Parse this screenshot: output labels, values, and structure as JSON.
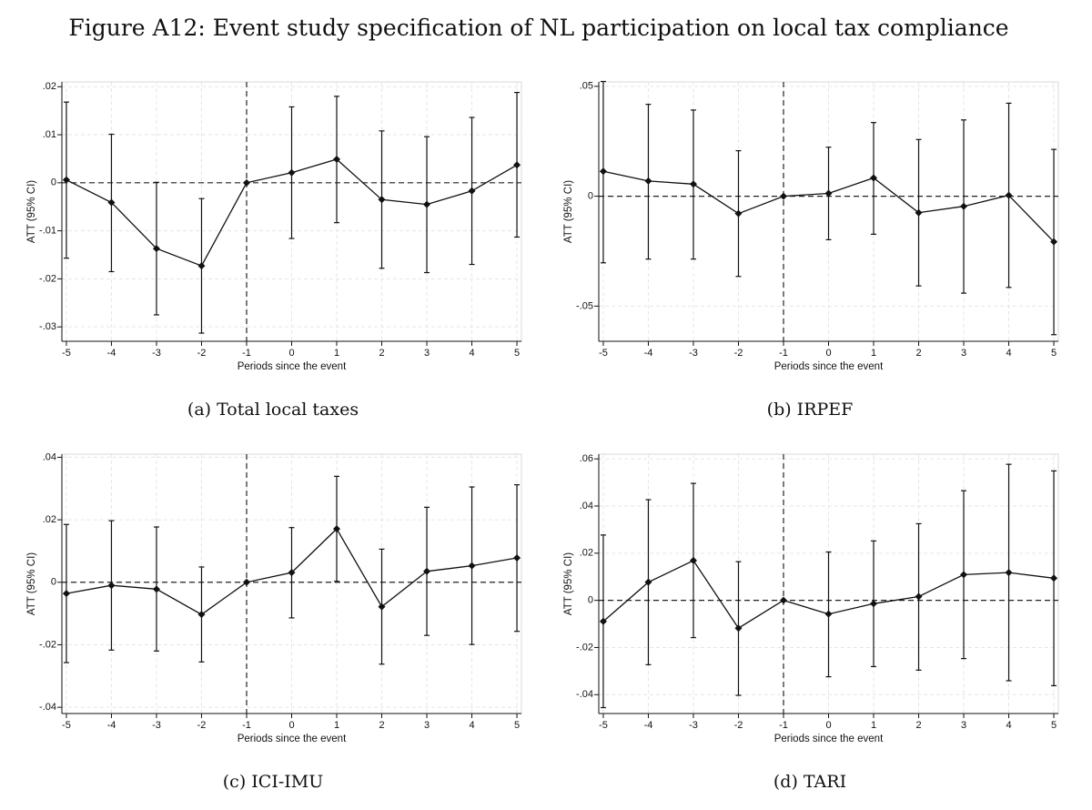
{
  "figure_title": "Figure A12: Event study specification of NL participation on local tax compliance",
  "chart_data": [
    {
      "type": "line",
      "caption": "(a) Total local taxes",
      "xlabel": "Periods since the event",
      "ylabel": "ATT (95% CI)",
      "x": [
        -5,
        -4,
        -3,
        -2,
        -1,
        0,
        1,
        2,
        3,
        4,
        5
      ],
      "xticklabels": [
        "-5",
        "-4",
        "-3",
        "-2",
        "-1",
        "0",
        "1",
        "2",
        "3",
        "4",
        "5"
      ],
      "ylim": [
        -0.033,
        0.021
      ],
      "yticks": [
        -0.03,
        -0.02,
        -0.01,
        0,
        0.01,
        0.02
      ],
      "yticklabels": [
        "-.03",
        "-.02",
        "-.01",
        "0",
        ".01",
        ".02"
      ],
      "reference_x": -1,
      "series": [
        {
          "name": "ATT",
          "values": [
            0.0006,
            -0.0041,
            -0.0137,
            -0.0173,
            0.0,
            0.0021,
            0.0049,
            -0.0035,
            -0.0045,
            -0.0017,
            0.0037
          ],
          "ci_low": [
            -0.0157,
            -0.0185,
            -0.0275,
            -0.0313,
            0.0,
            -0.0116,
            -0.0083,
            -0.0178,
            -0.0187,
            -0.017,
            -0.0113
          ],
          "ci_high": [
            0.0168,
            0.0101,
            0.0001,
            -0.0033,
            0.0,
            0.0158,
            0.018,
            0.0108,
            0.0096,
            0.0136,
            0.0188
          ]
        }
      ]
    },
    {
      "type": "line",
      "caption": "(b) IRPEF",
      "xlabel": "Periods since the event",
      "ylabel": "ATT (95% CI)",
      "x": [
        -5,
        -4,
        -3,
        -2,
        -1,
        0,
        1,
        2,
        3,
        4,
        5
      ],
      "xticklabels": [
        "-5",
        "-4",
        "-3",
        "-2",
        "-1",
        "0",
        "1",
        "2",
        "3",
        "4",
        "5"
      ],
      "ylim": [
        -0.066,
        0.052
      ],
      "yticks": [
        -0.05,
        0,
        0.05
      ],
      "yticklabels": [
        "-.05",
        "0",
        ".05"
      ],
      "reference_x": -1,
      "series": [
        {
          "name": "ATT",
          "values": [
            0.0113,
            0.0069,
            0.0055,
            -0.0079,
            0.0,
            0.0013,
            0.0083,
            -0.0075,
            -0.0046,
            0.0004,
            -0.0207
          ],
          "ci_low": [
            -0.0303,
            -0.0286,
            -0.0286,
            -0.0365,
            0.0,
            -0.0198,
            -0.0173,
            -0.0408,
            -0.0441,
            -0.0415,
            -0.063
          ],
          "ci_high": [
            0.0522,
            0.0418,
            0.0392,
            0.0207,
            0.0,
            0.0223,
            0.0335,
            0.0258,
            0.0347,
            0.0423,
            0.0213
          ]
        }
      ]
    },
    {
      "type": "line",
      "caption": "(c) ICI-IMU",
      "xlabel": "Periods since the event",
      "ylabel": "ATT (95% CI)",
      "x": [
        -5,
        -4,
        -3,
        -2,
        -1,
        0,
        1,
        2,
        3,
        4,
        5
      ],
      "xticklabels": [
        "-5",
        "-4",
        "-3",
        "-2",
        "-1",
        "0",
        "1",
        "2",
        "3",
        "4",
        "5"
      ],
      "ylim": [
        -0.042,
        0.041
      ],
      "yticks": [
        -0.04,
        -0.02,
        0,
        0.02,
        0.04
      ],
      "yticklabels": [
        "-.04",
        "-.02",
        "0",
        ".02",
        ".04"
      ],
      "reference_x": -1,
      "series": [
        {
          "name": "ATT",
          "values": [
            -0.0036,
            -0.001,
            -0.0022,
            -0.0103,
            0.0,
            0.0031,
            0.0171,
            -0.0078,
            0.0035,
            0.0053,
            0.0078
          ],
          "ci_low": [
            -0.0257,
            -0.0217,
            -0.022,
            -0.0255,
            0.0,
            -0.0114,
            0.0003,
            -0.0262,
            -0.017,
            -0.0199,
            -0.0157
          ],
          "ci_high": [
            0.0185,
            0.0197,
            0.0177,
            0.0049,
            0.0,
            0.0175,
            0.0339,
            0.0106,
            0.024,
            0.0305,
            0.0312
          ]
        }
      ]
    },
    {
      "type": "line",
      "caption": "(d) TARI",
      "xlabel": "Periods since the event",
      "ylabel": "ATT (95% CI)",
      "x": [
        -5,
        -4,
        -3,
        -2,
        -1,
        0,
        1,
        2,
        3,
        4,
        5
      ],
      "xticklabels": [
        "-5",
        "-4",
        "-3",
        "-2",
        "-1",
        "0",
        "1",
        "2",
        "3",
        "4",
        "5"
      ],
      "ylim": [
        -0.048,
        0.062
      ],
      "yticks": [
        -0.04,
        -0.02,
        0,
        0.02,
        0.04,
        0.06
      ],
      "yticklabels": [
        "-.04",
        "-.02",
        "0",
        ".02",
        ".04",
        ".06"
      ],
      "reference_x": -1,
      "series": [
        {
          "name": "ATT",
          "values": [
            -0.0089,
            0.0077,
            0.0169,
            -0.0118,
            0.0,
            -0.0058,
            -0.0014,
            0.0016,
            0.0109,
            0.0118,
            0.0094
          ],
          "ci_low": [
            -0.0455,
            -0.0273,
            -0.0158,
            -0.0403,
            0.0,
            -0.0324,
            -0.0281,
            -0.0296,
            -0.0247,
            -0.0341,
            -0.0362
          ],
          "ci_high": [
            0.0277,
            0.0427,
            0.0496,
            0.0164,
            0.0,
            0.0205,
            0.0252,
            0.0325,
            0.0465,
            0.0577,
            0.0549
          ]
        }
      ]
    }
  ]
}
